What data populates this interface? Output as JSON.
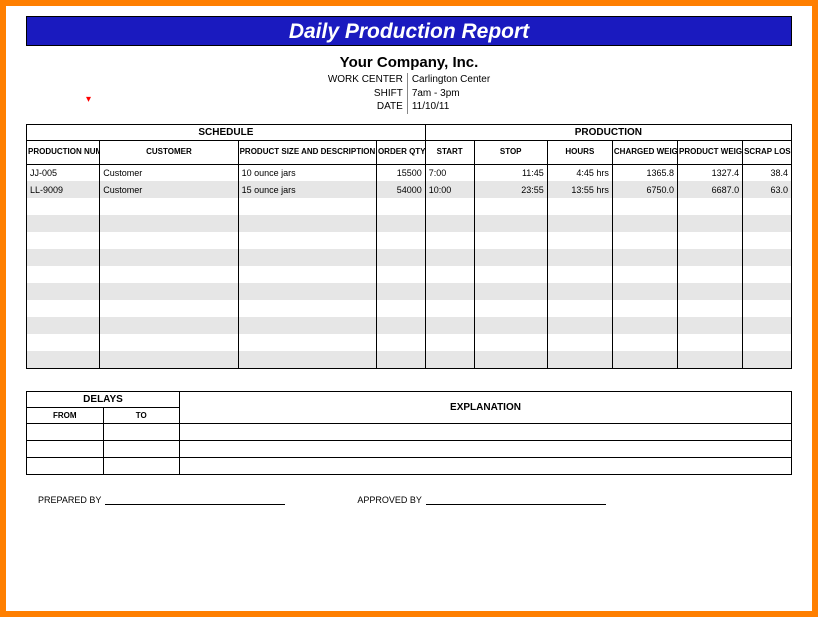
{
  "colors": {
    "frame_border": "#ff7f00",
    "title_bg": "#1a1abf",
    "title_fg": "#ffffff",
    "stripe": "#e6e6e6",
    "border": "#000000"
  },
  "title": "Daily Production Report",
  "company": "Your Company, Inc.",
  "meta": {
    "work_center_label": "WORK CENTER",
    "work_center_value": "Carlington Center",
    "shift_label": "SHIFT",
    "shift_value": "7am - 3pm",
    "date_label": "DATE",
    "date_value": "11/10/11"
  },
  "main_table": {
    "section_headers": {
      "schedule": "SCHEDULE",
      "production": "PRODUCTION"
    },
    "columns": {
      "prod_num": "PRODUCTION NUMBER",
      "customer": "CUSTOMER",
      "product": "PRODUCT SIZE AND DESCRIPTION",
      "order_qty": "ORDER QTY",
      "start": "START",
      "stop": "STOP",
      "hours": "HOURS",
      "charged_weight": "CHARGED WEIGHT",
      "product_weight": "PRODUCT WEIGHT",
      "scrap_loss": "SCRAP LOSS"
    },
    "col_widths_pct": [
      9,
      17,
      17,
      6,
      6,
      9,
      8,
      8,
      8,
      6
    ],
    "rows": [
      {
        "prod_num": "JJ-005",
        "customer": "Customer",
        "product": "10 ounce jars",
        "order_qty": "15500",
        "start": "7:00",
        "stop": "11:45",
        "hours": "4:45 hrs",
        "charged_weight": "1365.8",
        "product_weight": "1327.4",
        "scrap_loss": "38.4"
      },
      {
        "prod_num": "LL-9009",
        "customer": "Customer",
        "product": "15 ounce jars",
        "order_qty": "54000",
        "start": "10:00",
        "stop": "23:55",
        "hours": "13:55 hrs",
        "charged_weight": "6750.0",
        "product_weight": "6687.0",
        "scrap_loss": "63.0"
      }
    ],
    "blank_row_count": 10,
    "total_rows": 12
  },
  "delays_table": {
    "headers": {
      "delays": "DELAYS",
      "explanation": "EXPLANATION"
    },
    "subheaders": {
      "from": "FROM",
      "to": "TO"
    },
    "col_widths_pct": [
      10,
      10,
      80
    ],
    "row_count": 3
  },
  "signatures": {
    "prepared_by": "PREPARED BY",
    "approved_by": "APPROVED BY"
  }
}
